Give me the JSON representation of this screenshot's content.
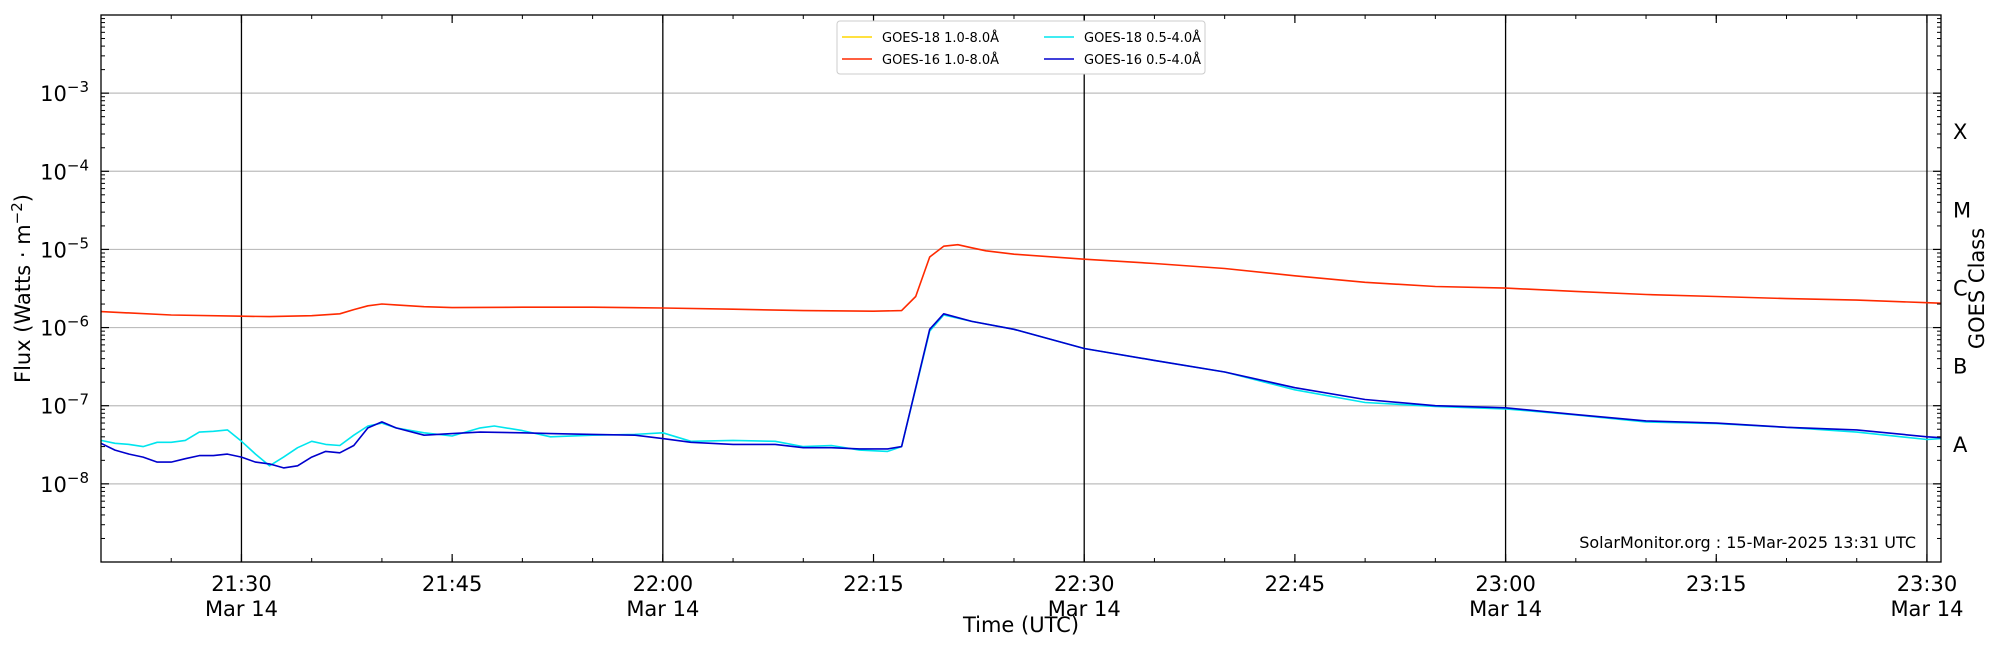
{
  "chart_data": {
    "type": "line",
    "title": "",
    "xlabel": "Time (UTC)",
    "ylabel": "Flux (Watts · m⁻²)",
    "y2label": "GOES Class",
    "yscale": "log",
    "ylim": [
      1e-09,
      0.01
    ],
    "xlim": [
      "2025-03-14 21:20",
      "2025-03-14 23:31"
    ],
    "grid": "horizontal",
    "legend_position": "top-center",
    "watermark": "SolarMonitor.org : 15-Mar-2025 13:31 UTC",
    "x_ticks": [
      {
        "x": "2025-03-14 21:30",
        "line1": "21:30",
        "line2": "Mar 14"
      },
      {
        "x": "2025-03-14 21:45",
        "line1": "21:45",
        "line2": ""
      },
      {
        "x": "2025-03-14 22:00",
        "line1": "22:00",
        "line2": "Mar 14"
      },
      {
        "x": "2025-03-14 22:15",
        "line1": "22:15",
        "line2": ""
      },
      {
        "x": "2025-03-14 22:30",
        "line1": "22:30",
        "line2": "Mar 14"
      },
      {
        "x": "2025-03-14 22:45",
        "line1": "22:45",
        "line2": ""
      },
      {
        "x": "2025-03-14 23:00",
        "line1": "23:00",
        "line2": "Mar 14"
      },
      {
        "x": "2025-03-14 23:15",
        "line1": "23:15",
        "line2": ""
      },
      {
        "x": "2025-03-14 23:30",
        "line1": "23:30",
        "line2": "Mar 14"
      }
    ],
    "y_ticks": [
      {
        "value": 1e-08,
        "base": "10",
        "exp": "−8"
      },
      {
        "value": 1e-07,
        "base": "10",
        "exp": "−7"
      },
      {
        "value": 1e-06,
        "base": "10",
        "exp": "−6"
      },
      {
        "value": 1e-05,
        "base": "10",
        "exp": "−5"
      },
      {
        "value": 0.0001,
        "base": "10",
        "exp": "−4"
      },
      {
        "value": 0.001,
        "base": "10",
        "exp": "−3"
      }
    ],
    "vertical_lines": [
      "2025-03-14 21:30",
      "2025-03-14 22:00",
      "2025-03-14 22:30",
      "2025-03-14 23:00",
      "2025-03-14 23:30"
    ],
    "goes_classes": [
      {
        "label": "A",
        "value": 3.16e-08
      },
      {
        "label": "B",
        "value": 3.16e-07
      },
      {
        "label": "C",
        "value": 3.16e-06
      },
      {
        "label": "M",
        "value": 3.16e-05
      },
      {
        "label": "X",
        "value": 0.000316
      }
    ],
    "series": [
      {
        "name": "GOES-18 1.0-8.0Å",
        "color": "#ffd700",
        "x": [],
        "values": []
      },
      {
        "name": "GOES-16 1.0-8.0Å",
        "color": "#ff2a00",
        "x": [
          "2025-03-14 21:20",
          "2025-03-14 21:25",
          "2025-03-14 21:30",
          "2025-03-14 21:32",
          "2025-03-14 21:35",
          "2025-03-14 21:37",
          "2025-03-14 21:38",
          "2025-03-14 21:39",
          "2025-03-14 21:40",
          "2025-03-14 21:41",
          "2025-03-14 21:43",
          "2025-03-14 21:45",
          "2025-03-14 21:50",
          "2025-03-14 21:55",
          "2025-03-14 22:00",
          "2025-03-14 22:05",
          "2025-03-14 22:10",
          "2025-03-14 22:15",
          "2025-03-14 22:17",
          "2025-03-14 22:18",
          "2025-03-14 22:19",
          "2025-03-14 22:20",
          "2025-03-14 22:21",
          "2025-03-14 22:22",
          "2025-03-14 22:23",
          "2025-03-14 22:25",
          "2025-03-14 22:30",
          "2025-03-14 22:35",
          "2025-03-14 22:40",
          "2025-03-14 22:45",
          "2025-03-14 22:50",
          "2025-03-14 22:55",
          "2025-03-14 23:00",
          "2025-03-14 23:05",
          "2025-03-14 23:10",
          "2025-03-14 23:15",
          "2025-03-14 23:20",
          "2025-03-14 23:25",
          "2025-03-14 23:30",
          "2025-03-14 23:31"
        ],
        "values": [
          1.6e-06,
          1.45e-06,
          1.4e-06,
          1.38e-06,
          1.42e-06,
          1.5e-06,
          1.7e-06,
          1.9e-06,
          2e-06,
          1.95e-06,
          1.85e-06,
          1.8e-06,
          1.82e-06,
          1.82e-06,
          1.78e-06,
          1.72e-06,
          1.65e-06,
          1.62e-06,
          1.65e-06,
          2.5e-06,
          8e-06,
          1.1e-05,
          1.15e-05,
          1.05e-05,
          9.6e-06,
          8.7e-06,
          7.5e-06,
          6.6e-06,
          5.7e-06,
          4.6e-06,
          3.8e-06,
          3.35e-06,
          3.2e-06,
          2.9e-06,
          2.65e-06,
          2.5e-06,
          2.35e-06,
          2.25e-06,
          2.08e-06,
          2.05e-06
        ]
      },
      {
        "name": "GOES-18 0.5-4.0Å",
        "color": "#00e5ee",
        "x": [
          "2025-03-14 21:20",
          "2025-03-14 21:21",
          "2025-03-14 21:22",
          "2025-03-14 21:23",
          "2025-03-14 21:24",
          "2025-03-14 21:25",
          "2025-03-14 21:26",
          "2025-03-14 21:27",
          "2025-03-14 21:28",
          "2025-03-14 21:29",
          "2025-03-14 21:30",
          "2025-03-14 21:31",
          "2025-03-14 21:32",
          "2025-03-14 21:33",
          "2025-03-14 21:34",
          "2025-03-14 21:35",
          "2025-03-14 21:36",
          "2025-03-14 21:37",
          "2025-03-14 21:38",
          "2025-03-14 21:39",
          "2025-03-14 21:40",
          "2025-03-14 21:41",
          "2025-03-14 21:43",
          "2025-03-14 21:45",
          "2025-03-14 21:47",
          "2025-03-14 21:48",
          "2025-03-14 21:50",
          "2025-03-14 21:52",
          "2025-03-14 21:55",
          "2025-03-14 21:58",
          "2025-03-14 22:00",
          "2025-03-14 22:02",
          "2025-03-14 22:05",
          "2025-03-14 22:08",
          "2025-03-14 22:10",
          "2025-03-14 22:12",
          "2025-03-14 22:14",
          "2025-03-14 22:16",
          "2025-03-14 22:17",
          "2025-03-14 22:19",
          "2025-03-14 22:20",
          "2025-03-14 22:22",
          "2025-03-14 22:25",
          "2025-03-14 22:30",
          "2025-03-14 22:35",
          "2025-03-14 22:40",
          "2025-03-14 22:45",
          "2025-03-14 22:50",
          "2025-03-14 22:55",
          "2025-03-14 23:00",
          "2025-03-14 23:05",
          "2025-03-14 23:10",
          "2025-03-14 23:15",
          "2025-03-14 23:20",
          "2025-03-14 23:25",
          "2025-03-14 23:30",
          "2025-03-14 23:31"
        ],
        "values": [
          3.6e-08,
          3.3e-08,
          3.2e-08,
          3e-08,
          3.4e-08,
          3.4e-08,
          3.6e-08,
          4.6e-08,
          4.7e-08,
          4.9e-08,
          3.5e-08,
          2.4e-08,
          1.7e-08,
          2.2e-08,
          2.9e-08,
          3.5e-08,
          3.2e-08,
          3.1e-08,
          4.2e-08,
          5.5e-08,
          6e-08,
          5.2e-08,
          4.5e-08,
          4.1e-08,
          5.2e-08,
          5.5e-08,
          4.8e-08,
          4e-08,
          4.2e-08,
          4.3e-08,
          4.5e-08,
          3.5e-08,
          3.6e-08,
          3.5e-08,
          3e-08,
          3.1e-08,
          2.7e-08,
          2.6e-08,
          3e-08,
          9e-07,
          1.45e-06,
          1.2e-06,
          9.5e-07,
          5.4e-07,
          3.8e-07,
          2.7e-07,
          1.6e-07,
          1.1e-07,
          9.8e-08,
          9.1e-08,
          7.6e-08,
          6.2e-08,
          5.9e-08,
          5.3e-08,
          4.6e-08,
          3.7e-08,
          3.8e-08
        ]
      },
      {
        "name": "GOES-16 0.5-4.0Å",
        "color": "#0000cd",
        "x": [
          "2025-03-14 21:20",
          "2025-03-14 21:21",
          "2025-03-14 21:22",
          "2025-03-14 21:23",
          "2025-03-14 21:24",
          "2025-03-14 21:25",
          "2025-03-14 21:26",
          "2025-03-14 21:27",
          "2025-03-14 21:28",
          "2025-03-14 21:29",
          "2025-03-14 21:30",
          "2025-03-14 21:31",
          "2025-03-14 21:32",
          "2025-03-14 21:33",
          "2025-03-14 21:34",
          "2025-03-14 21:35",
          "2025-03-14 21:36",
          "2025-03-14 21:37",
          "2025-03-14 21:38",
          "2025-03-14 21:39",
          "2025-03-14 21:40",
          "2025-03-14 21:41",
          "2025-03-14 21:43",
          "2025-03-14 21:45",
          "2025-03-14 21:47",
          "2025-03-14 21:50",
          "2025-03-14 21:52",
          "2025-03-14 21:55",
          "2025-03-14 21:58",
          "2025-03-14 22:00",
          "2025-03-14 22:02",
          "2025-03-14 22:05",
          "2025-03-14 22:08",
          "2025-03-14 22:10",
          "2025-03-14 22:12",
          "2025-03-14 22:14",
          "2025-03-14 22:16",
          "2025-03-14 22:17",
          "2025-03-14 22:19",
          "2025-03-14 22:20",
          "2025-03-14 22:22",
          "2025-03-14 22:25",
          "2025-03-14 22:30",
          "2025-03-14 22:35",
          "2025-03-14 22:40",
          "2025-03-14 22:45",
          "2025-03-14 22:50",
          "2025-03-14 22:55",
          "2025-03-14 23:00",
          "2025-03-14 23:05",
          "2025-03-14 23:10",
          "2025-03-14 23:15",
          "2025-03-14 23:20",
          "2025-03-14 23:25",
          "2025-03-14 23:30",
          "2025-03-14 23:31"
        ],
        "values": [
          3.3e-08,
          2.7e-08,
          2.4e-08,
          2.2e-08,
          1.9e-08,
          1.9e-08,
          2.1e-08,
          2.3e-08,
          2.3e-08,
          2.4e-08,
          2.2e-08,
          1.9e-08,
          1.8e-08,
          1.6e-08,
          1.7e-08,
          2.2e-08,
          2.6e-08,
          2.5e-08,
          3.1e-08,
          5.2e-08,
          6.2e-08,
          5.2e-08,
          4.2e-08,
          4.4e-08,
          4.6e-08,
          4.5e-08,
          4.4e-08,
          4.3e-08,
          4.2e-08,
          3.8e-08,
          3.4e-08,
          3.2e-08,
          3.2e-08,
          2.9e-08,
          2.9e-08,
          2.8e-08,
          2.8e-08,
          3e-08,
          9.5e-07,
          1.5e-06,
          1.2e-06,
          9.5e-07,
          5.4e-07,
          3.8e-07,
          2.7e-07,
          1.7e-07,
          1.2e-07,
          1e-07,
          9.4e-08,
          7.7e-08,
          6.4e-08,
          6e-08,
          5.3e-08,
          4.9e-08,
          4e-08,
          3.9e-08
        ]
      }
    ]
  }
}
